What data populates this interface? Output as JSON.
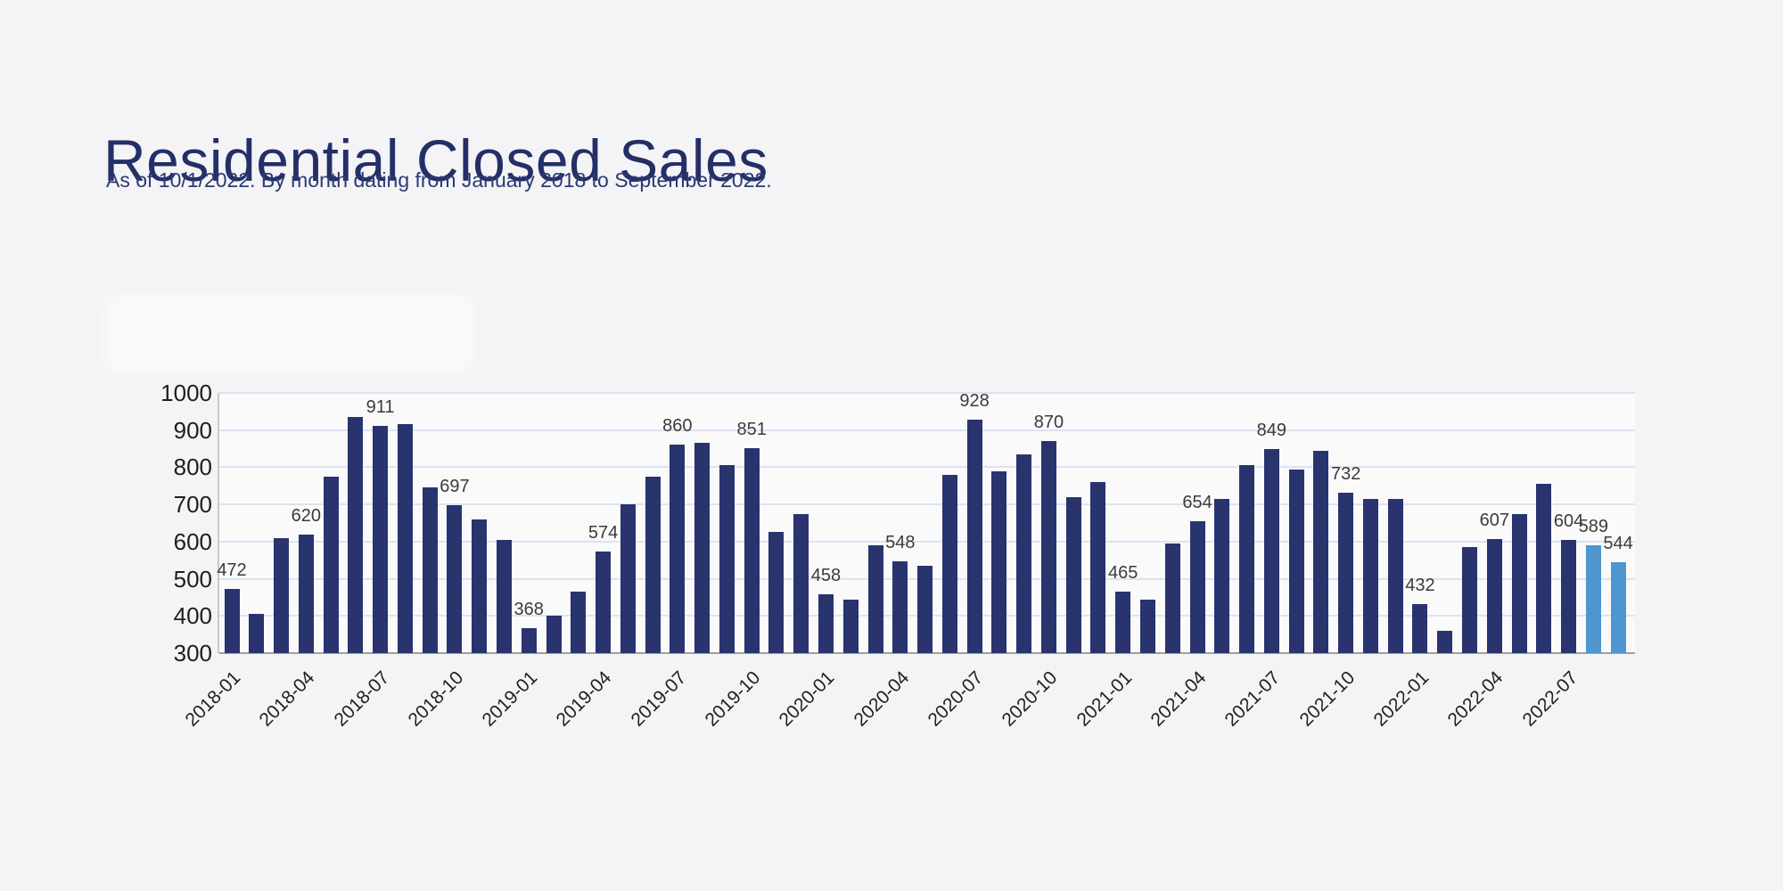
{
  "header": {
    "title": "Residential Closed Sales",
    "subtitle": "As of 10/1/2022. By month dating from January 2018 to September 2022."
  },
  "chart_data": {
    "type": "bar",
    "title": "Residential Closed Sales",
    "subtitle": "As of 10/1/2022. By month dating from January 2018 to September 2022.",
    "x": [
      "2018-01",
      "2018-02",
      "2018-03",
      "2018-04",
      "2018-05",
      "2018-06",
      "2018-07",
      "2018-08",
      "2018-09",
      "2018-10",
      "2018-11",
      "2018-12",
      "2019-01",
      "2019-02",
      "2019-03",
      "2019-04",
      "2019-05",
      "2019-06",
      "2019-07",
      "2019-08",
      "2019-09",
      "2019-10",
      "2019-11",
      "2019-12",
      "2020-01",
      "2020-02",
      "2020-03",
      "2020-04",
      "2020-05",
      "2020-06",
      "2020-07",
      "2020-08",
      "2020-09",
      "2020-10",
      "2020-11",
      "2020-12",
      "2021-01",
      "2021-02",
      "2021-03",
      "2021-04",
      "2021-05",
      "2021-06",
      "2021-07",
      "2021-08",
      "2021-09",
      "2021-10",
      "2021-11",
      "2021-12",
      "2022-01",
      "2022-02",
      "2022-03",
      "2022-04",
      "2022-05",
      "2022-06",
      "2022-07",
      "2022-08",
      "2022-09"
    ],
    "values": [
      472,
      405,
      610,
      620,
      775,
      935,
      911,
      915,
      745,
      697,
      660,
      605,
      368,
      400,
      465,
      574,
      700,
      775,
      860,
      865,
      805,
      851,
      625,
      675,
      458,
      445,
      590,
      548,
      535,
      780,
      928,
      790,
      835,
      870,
      720,
      760,
      465,
      445,
      595,
      654,
      715,
      805,
      849,
      795,
      845,
      732,
      715,
      715,
      432,
      360,
      585,
      607,
      675,
      755,
      604,
      589,
      544
    ],
    "labeled_indices": [
      0,
      3,
      6,
      9,
      12,
      15,
      18,
      21,
      24,
      27,
      30,
      33,
      36,
      39,
      42,
      45,
      48,
      51,
      54,
      55,
      56
    ],
    "labeled_values": [
      472,
      620,
      911,
      697,
      368,
      574,
      860,
      851,
      458,
      548,
      928,
      870,
      465,
      654,
      849,
      732,
      432,
      607,
      604,
      589,
      544
    ],
    "x_tick_labels": [
      "2018-01",
      "2018-04",
      "2018-07",
      "2018-10",
      "2019-01",
      "2019-04",
      "2019-07",
      "2019-10",
      "2020-01",
      "2020-04",
      "2020-07",
      "2020-10",
      "2021-01",
      "2021-04",
      "2021-07",
      "2021-10",
      "2022-01",
      "2022-04",
      "2022-07"
    ],
    "x_tick_every": 3,
    "yticks": [
      300,
      400,
      500,
      600,
      700,
      800,
      900,
      1000
    ],
    "ylim": [
      300,
      1000
    ],
    "grid": "horizontal",
    "legend": "none",
    "highlight_months": [
      "2022-08",
      "2022-09"
    ],
    "colors": {
      "bar": "#29336e",
      "bar_highlight": "#4f96d1",
      "gridline": "#dee2f2",
      "axis_line": "#9f9fa0",
      "title": "#242f68",
      "subtitle": "#2c3a75",
      "data_label": "#3b3b3b",
      "tick_label": "#1f1f1f",
      "background": "#f4f4f6"
    }
  }
}
